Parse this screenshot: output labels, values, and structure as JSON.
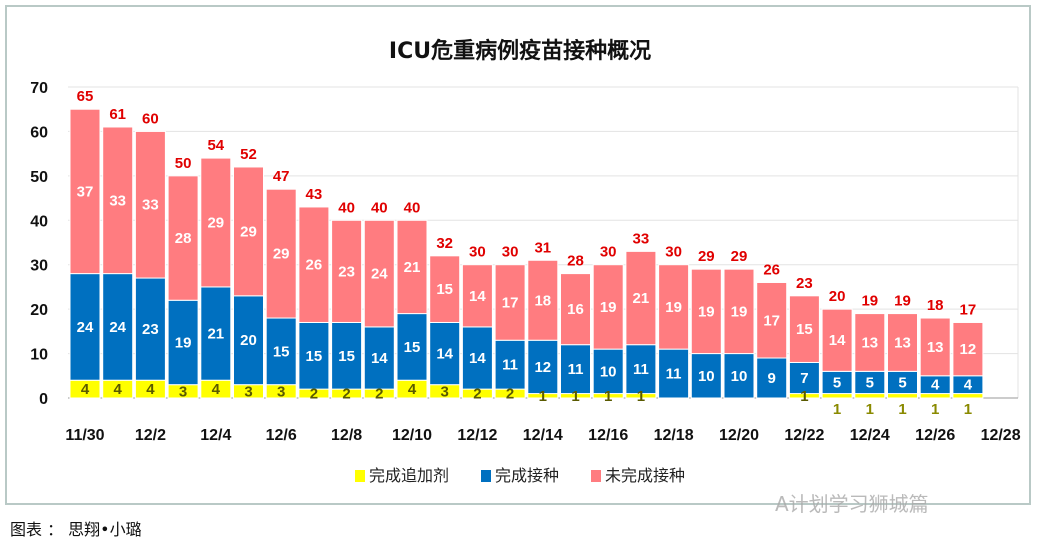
{
  "chart_data": {
    "type": "bar",
    "stacked": true,
    "title": "ICU危重病例疫苗接种概况",
    "categories": [
      "11/30",
      "12/1",
      "12/2",
      "12/3",
      "12/4",
      "12/5",
      "12/6",
      "12/7",
      "12/8",
      "12/9",
      "12/10",
      "12/11",
      "12/12",
      "12/13",
      "12/14",
      "12/15",
      "12/16",
      "12/17",
      "12/18",
      "12/19",
      "12/20",
      "12/21",
      "12/22",
      "12/23",
      "12/24",
      "12/25",
      "12/26",
      "12/27"
    ],
    "x_tick_labels": [
      "11/30",
      "12/2",
      "12/4",
      "12/6",
      "12/8",
      "12/10",
      "12/12",
      "12/14",
      "12/16",
      "12/18",
      "12/20",
      "12/22",
      "12/24",
      "12/26",
      "12/28"
    ],
    "y_ticks": [
      0,
      10,
      20,
      30,
      40,
      50,
      60,
      70
    ],
    "ylim": [
      0,
      70
    ],
    "grid": true,
    "legend_position": "bottom",
    "series": [
      {
        "name": "完成追加剂",
        "color": "#ffff00",
        "label_color": "#5a5a00",
        "values": [
          4,
          4,
          4,
          3,
          4,
          3,
          3,
          2,
          2,
          2,
          4,
          3,
          2,
          2,
          1,
          1,
          1,
          1,
          0,
          0,
          0,
          0,
          1,
          1,
          1,
          1,
          1,
          1
        ]
      },
      {
        "name": "完成接种",
        "color": "#0070c0",
        "label_color": "#ffffff",
        "values": [
          24,
          24,
          23,
          19,
          21,
          20,
          15,
          15,
          15,
          14,
          15,
          14,
          14,
          11,
          12,
          11,
          10,
          11,
          11,
          10,
          10,
          9,
          7,
          5,
          5,
          5,
          4,
          4
        ]
      },
      {
        "name": "未完成接种",
        "color": "#ff7c80",
        "label_color": "#ffffff",
        "values": [
          37,
          33,
          33,
          28,
          29,
          29,
          29,
          26,
          23,
          24,
          21,
          15,
          14,
          17,
          18,
          16,
          19,
          21,
          19,
          19,
          19,
          17,
          15,
          14,
          13,
          13,
          13,
          12
        ]
      }
    ],
    "totals": [
      65,
      61,
      60,
      50,
      54,
      52,
      47,
      43,
      40,
      40,
      40,
      32,
      30,
      30,
      31,
      28,
      30,
      33,
      30,
      29,
      29,
      26,
      23,
      20,
      19,
      19,
      18,
      17
    ],
    "total_label_color": "#e00000"
  },
  "caption": "图表 ： 思翔•小璐",
  "watermark": "A计划学习狮城篇"
}
